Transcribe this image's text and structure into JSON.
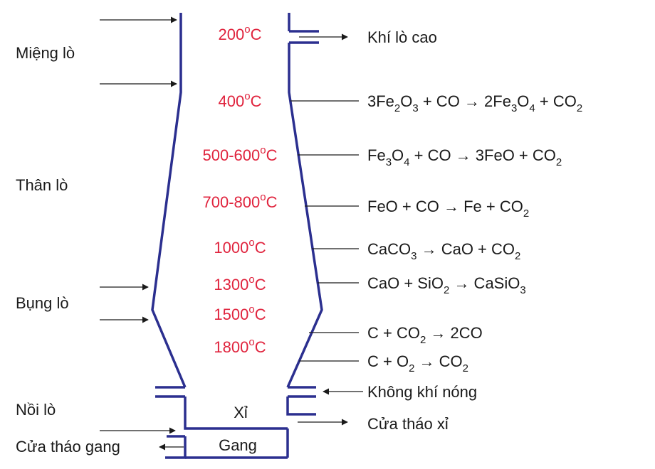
{
  "zones": {
    "mouth": "Miệng lò",
    "body": "Thân lò",
    "belly": "Bụng lò",
    "hearth": "Nồi lò",
    "iron_tap": "Cửa tháo gang"
  },
  "temperatures": [
    {
      "value": "200",
      "unit": "oC"
    },
    {
      "value": "400",
      "unit": "oC"
    },
    {
      "value": "500-600",
      "unit": "oC"
    },
    {
      "value": "700-800",
      "unit": "oC"
    },
    {
      "value": "1000",
      "unit": "oC"
    },
    {
      "value": "1300",
      "unit": "oC"
    },
    {
      "value": "1500",
      "unit": "oC"
    },
    {
      "value": "1800",
      "unit": "oC"
    }
  ],
  "right_labels": {
    "gas": "Khí lò cao",
    "hot_air": "Không khí nóng",
    "slag_tap": "Cửa tháo xỉ"
  },
  "reactions": [
    [
      [
        "3Fe",
        ""
      ],
      [
        "2",
        "sub"
      ],
      [
        "O",
        ""
      ],
      [
        "3",
        "sub"
      ],
      [
        " + CO → 2Fe",
        ""
      ],
      [
        "3",
        "sub"
      ],
      [
        "O",
        ""
      ],
      [
        "4",
        "sub"
      ],
      [
        " + CO",
        ""
      ],
      [
        "2",
        "sub"
      ]
    ],
    [
      [
        "Fe",
        ""
      ],
      [
        "3",
        "sub"
      ],
      [
        "O",
        ""
      ],
      [
        "4",
        "sub"
      ],
      [
        " + CO → 3FeO + CO",
        ""
      ],
      [
        "2",
        "sub"
      ]
    ],
    [
      [
        "FeO + CO → Fe + CO",
        ""
      ],
      [
        "2",
        "sub"
      ]
    ],
    [
      [
        "CaCO",
        ""
      ],
      [
        "3",
        "sub"
      ],
      [
        " → CaO + CO",
        ""
      ],
      [
        "2",
        "sub"
      ]
    ],
    [
      [
        "CaO + SiO",
        ""
      ],
      [
        "2",
        "sub"
      ],
      [
        " → CaSiO",
        ""
      ],
      [
        "3",
        "sub"
      ]
    ],
    [
      [
        "C + CO",
        ""
      ],
      [
        "2",
        "sub"
      ],
      [
        " → 2CO",
        ""
      ]
    ],
    [
      [
        "C + O",
        ""
      ],
      [
        "2",
        "sub"
      ],
      [
        " → CO",
        ""
      ],
      [
        "2",
        "sub"
      ]
    ]
  ],
  "inner": {
    "slag": "Xỉ",
    "iron": "Gang"
  }
}
